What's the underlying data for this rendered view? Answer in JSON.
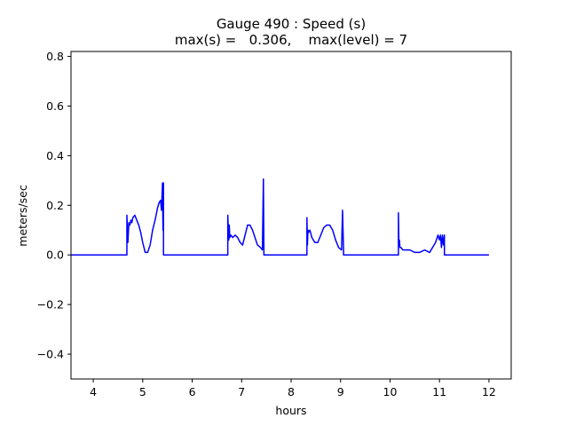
{
  "chart_data": {
    "type": "line",
    "title_line1": "Gauge 490 : Speed (s)",
    "title_line2": "max(s) =   0.306,    max(level) = 7",
    "xlabel": "hours",
    "ylabel": "meters/sec",
    "xlim": [
      3.55,
      12.45
    ],
    "ylim": [
      -0.5,
      0.82
    ],
    "xticks": [
      4,
      5,
      6,
      7,
      8,
      9,
      10,
      11,
      12
    ],
    "yticks": [
      -0.4,
      -0.2,
      0.0,
      0.2,
      0.4,
      0.6,
      0.8
    ],
    "xtick_labels": [
      "4",
      "5",
      "6",
      "7",
      "8",
      "9",
      "10",
      "11",
      "12"
    ],
    "ytick_labels": [
      "−0.4",
      "−0.2",
      "0.0",
      "0.2",
      "0.4",
      "0.6",
      "0.8"
    ],
    "series": [
      {
        "name": "speed",
        "color": "#0000ff",
        "x": [
          3.55,
          4.68,
          4.68,
          4.7,
          4.72,
          4.74,
          4.76,
          4.78,
          4.8,
          4.84,
          4.88,
          4.92,
          4.96,
          5.0,
          5.05,
          5.1,
          5.15,
          5.2,
          5.25,
          5.3,
          5.33,
          5.36,
          5.38,
          5.4,
          5.41,
          5.42,
          5.42,
          6.72,
          6.72,
          6.74,
          6.75,
          6.76,
          6.78,
          6.82,
          6.87,
          6.92,
          6.97,
          7.02,
          7.07,
          7.12,
          7.17,
          7.22,
          7.27,
          7.32,
          7.38,
          7.42,
          7.44,
          7.45,
          7.45,
          8.32,
          8.32,
          8.33,
          8.34,
          8.35,
          8.38,
          8.42,
          8.48,
          8.54,
          8.6,
          8.66,
          8.72,
          8.78,
          8.84,
          8.9,
          8.96,
          9.02,
          9.04,
          9.06,
          9.06,
          10.17,
          10.17,
          10.18,
          10.19,
          10.2,
          10.22,
          10.26,
          10.32,
          10.4,
          10.5,
          10.6,
          10.7,
          10.8,
          10.86,
          10.92,
          10.97,
          11.0,
          11.02,
          11.04,
          11.06,
          11.08,
          11.1,
          11.1,
          12.0
        ],
        "y": [
          0.0,
          0.0,
          0.16,
          0.05,
          0.13,
          0.12,
          0.14,
          0.13,
          0.15,
          0.16,
          0.14,
          0.12,
          0.09,
          0.05,
          0.01,
          0.01,
          0.04,
          0.1,
          0.14,
          0.19,
          0.21,
          0.22,
          0.18,
          0.29,
          0.1,
          0.29,
          0.0,
          0.0,
          0.16,
          0.06,
          0.12,
          0.07,
          0.08,
          0.07,
          0.08,
          0.07,
          0.05,
          0.04,
          0.08,
          0.12,
          0.12,
          0.1,
          0.07,
          0.04,
          0.03,
          0.02,
          0.306,
          0.02,
          0.0,
          0.0,
          0.15,
          0.04,
          0.1,
          0.09,
          0.1,
          0.07,
          0.05,
          0.05,
          0.08,
          0.11,
          0.12,
          0.12,
          0.1,
          0.06,
          0.03,
          0.02,
          0.18,
          0.02,
          0.0,
          0.0,
          0.17,
          0.04,
          0.06,
          0.03,
          0.03,
          0.02,
          0.02,
          0.02,
          0.01,
          0.01,
          0.02,
          0.01,
          0.03,
          0.05,
          0.08,
          0.06,
          0.08,
          0.03,
          0.08,
          0.04,
          0.08,
          0.0,
          0.0
        ]
      }
    ]
  }
}
